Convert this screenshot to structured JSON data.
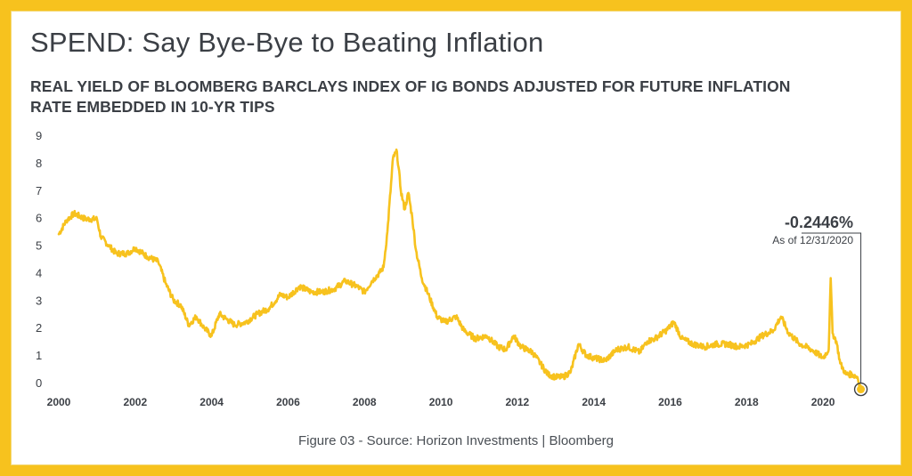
{
  "header": {
    "title": "SPEND: Say Bye-Bye to Beating Inflation",
    "subtitle": "REAL YIELD OF BLOOMBERG BARCLAYS INDEX OF IG BONDS ADJUSTED FOR FUTURE INFLATION RATE EMBEDDED IN 10-YR TIPS"
  },
  "footer": {
    "caption": "Figure 03 - Source: Horizon Investments | Bloomberg"
  },
  "annotation": {
    "value_label": "-0.2446%",
    "date_label": "As of 12/31/2020"
  },
  "colors": {
    "line": "#f7c21e",
    "frame": "#f7c21e",
    "text": "#3b3f45"
  },
  "chart_data": {
    "type": "line",
    "title": "REAL YIELD OF BLOOMBERG BARCLAYS INDEX OF IG BONDS ADJUSTED FOR FUTURE INFLATION RATE EMBEDDED IN 10-YR TIPS",
    "xlabel": "",
    "ylabel": "",
    "xlim": [
      2000,
      2021
    ],
    "ylim": [
      0,
      9
    ],
    "x_ticks": [
      "2000",
      "2002",
      "2004",
      "2006",
      "2008",
      "2010",
      "2012",
      "2014",
      "2016",
      "2018",
      "2020"
    ],
    "y_ticks": [
      "0",
      "1",
      "2",
      "3",
      "4",
      "5",
      "6",
      "7",
      "8",
      "9"
    ],
    "grid": false,
    "legend": "none",
    "series": [
      {
        "x": [
          2000.0,
          2000.2,
          2000.4,
          2000.7,
          2001.0,
          2001.1,
          2001.3,
          2001.5,
          2001.8,
          2002.0,
          2002.3,
          2002.6,
          2002.8,
          2003.0,
          2003.2,
          2003.4,
          2003.6,
          2003.8,
          2004.0,
          2004.2,
          2004.4,
          2004.6,
          2004.9,
          2005.2,
          2005.5,
          2005.8,
          2006.0,
          2006.3,
          2006.6,
          2006.9,
          2007.2,
          2007.5,
          2007.8,
          2008.0,
          2008.2,
          2008.4,
          2008.5,
          2008.6,
          2008.75,
          2008.85,
          2008.95,
          2009.05,
          2009.15,
          2009.25,
          2009.35,
          2009.5,
          2009.7,
          2009.9,
          2010.1,
          2010.4,
          2010.6,
          2010.9,
          2011.2,
          2011.5,
          2011.7,
          2011.9,
          2012.1,
          2012.4,
          2012.6,
          2012.8,
          2013.0,
          2013.2,
          2013.4,
          2013.6,
          2013.8,
          2014.0,
          2014.3,
          2014.6,
          2014.9,
          2015.2,
          2015.4,
          2015.6,
          2015.9,
          2016.1,
          2016.3,
          2016.6,
          2016.9,
          2017.2,
          2017.5,
          2017.8,
          2018.1,
          2018.4,
          2018.7,
          2018.9,
          2019.1,
          2019.4,
          2019.7,
          2020.0,
          2020.15,
          2020.2,
          2020.25,
          2020.35,
          2020.45,
          2020.6,
          2020.75,
          2020.9,
          2021.0
        ],
        "values": [
          5.4,
          5.9,
          6.15,
          5.95,
          5.95,
          5.3,
          5.0,
          4.7,
          4.7,
          4.9,
          4.6,
          4.4,
          3.6,
          3.0,
          2.8,
          2.1,
          2.4,
          2.0,
          1.7,
          2.5,
          2.3,
          2.1,
          2.2,
          2.5,
          2.7,
          3.2,
          3.1,
          3.5,
          3.3,
          3.3,
          3.4,
          3.7,
          3.5,
          3.3,
          3.7,
          4.0,
          4.2,
          5.5,
          8.2,
          8.4,
          7.0,
          6.3,
          6.9,
          6.0,
          4.8,
          3.8,
          3.1,
          2.4,
          2.2,
          2.4,
          1.9,
          1.6,
          1.7,
          1.3,
          1.2,
          1.7,
          1.3,
          1.1,
          0.7,
          0.3,
          0.2,
          0.2,
          0.4,
          1.4,
          1.0,
          0.9,
          0.8,
          1.2,
          1.3,
          1.1,
          1.5,
          1.6,
          1.9,
          2.2,
          1.6,
          1.4,
          1.3,
          1.4,
          1.4,
          1.3,
          1.4,
          1.7,
          1.9,
          2.4,
          1.8,
          1.4,
          1.2,
          0.9,
          1.2,
          3.8,
          1.8,
          1.5,
          0.7,
          0.3,
          0.3,
          0.2,
          -0.2446
        ]
      }
    ],
    "last_point": {
      "x": 2020.99,
      "y": -0.2446
    }
  }
}
